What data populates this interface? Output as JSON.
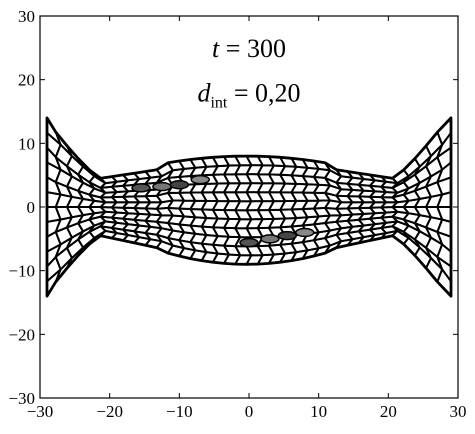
{
  "chart_data": {
    "type": "scatter",
    "title": "",
    "xlabel": "",
    "ylabel": "",
    "xlim": [
      -30,
      30
    ],
    "ylim": [
      -30,
      30
    ],
    "xticks": [
      -30,
      -20,
      -10,
      0,
      10,
      20,
      30
    ],
    "yticks": [
      -30,
      -20,
      -10,
      0,
      10,
      20,
      30
    ],
    "xtick_labels": [
      "−30",
      "−20",
      "−10",
      "0",
      "10",
      "20",
      "30"
    ],
    "ytick_labels": [
      "−30",
      "−20",
      "−10",
      "0",
      "10",
      "20",
      "30"
    ],
    "grid": false,
    "annotations": {
      "time": {
        "var": "t",
        "text": " = 300",
        "x": 0,
        "y": 25
      },
      "distance": {
        "var": "d",
        "sub": "int",
        "text": " = 0,20",
        "x": 0,
        "y": 18
      }
    },
    "mesh": {
      "description": "cellular network of polygonal cells between two clamped ends",
      "left_edge_x": -29,
      "right_edge_x": 29,
      "end_half_height": 14,
      "center_half_height": {
        "top": 8,
        "bottom": -9
      },
      "highlighted_cells": [
        {
          "x": -15.5,
          "y": 3,
          "shade": "#555555"
        },
        {
          "x": -12.5,
          "y": 3.2,
          "shade": "#777777"
        },
        {
          "x": -10,
          "y": 3.5,
          "shade": "#444444"
        },
        {
          "x": -7,
          "y": 4.3,
          "shade": "#888888"
        },
        {
          "x": 0,
          "y": -5.6,
          "shade": "#555555"
        },
        {
          "x": 3,
          "y": -5,
          "shade": "#777777"
        },
        {
          "x": 5.5,
          "y": -4.5,
          "shade": "#444444"
        },
        {
          "x": 8,
          "y": -4,
          "shade": "#888888"
        }
      ]
    },
    "colors": {
      "line": "#000000",
      "background": "#ffffff",
      "cell_fill": "#ffffff"
    }
  }
}
